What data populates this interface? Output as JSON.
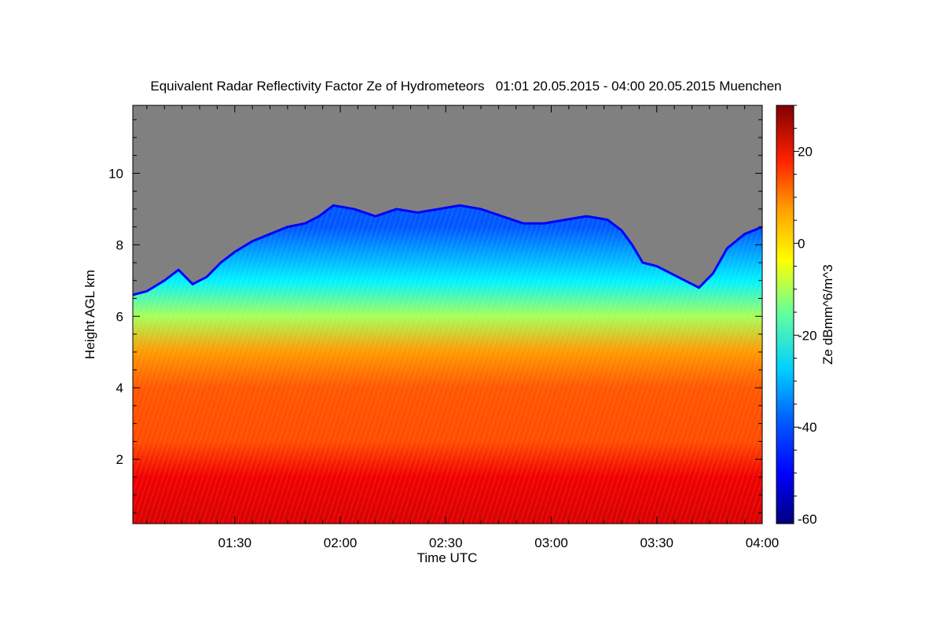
{
  "chart_data": {
    "type": "heatmap",
    "title": "Equivalent Radar Reflectivity Factor Ze of Hydrometeors   01:01 20.05.2015 - 04:00 20.05.2015 Muenchen",
    "xlabel": "Time UTC",
    "ylabel": "Height AGL km",
    "x_ticks": [
      "01:30",
      "02:00",
      "02:30",
      "03:00",
      "03:30",
      "04:00"
    ],
    "x_tick_minutes": [
      90,
      120,
      150,
      180,
      210,
      240
    ],
    "xlim_minutes": [
      61,
      240
    ],
    "y_ticks": [
      2,
      4,
      6,
      8,
      10
    ],
    "ylim_km": [
      0.2,
      11.9
    ],
    "colorbar": {
      "label": "Ze dBmm^6/m^3",
      "range": [
        -61,
        30
      ],
      "ticks": [
        -60,
        -40,
        -20,
        0,
        20
      ]
    },
    "colors": {
      "no_data": "#808080",
      "colormap": [
        "#00007f",
        "#0000ff",
        "#0080ff",
        "#00ffff",
        "#80ff80",
        "#ffff00",
        "#ff8000",
        "#ff0000",
        "#7f0000"
      ]
    },
    "cloud_top_km": [
      [
        61,
        6.6
      ],
      [
        65,
        6.7
      ],
      [
        70,
        7.0
      ],
      [
        74,
        7.3
      ],
      [
        78,
        6.9
      ],
      [
        82,
        7.1
      ],
      [
        86,
        7.5
      ],
      [
        90,
        7.8
      ],
      [
        95,
        8.1
      ],
      [
        100,
        8.3
      ],
      [
        105,
        8.5
      ],
      [
        110,
        8.6
      ],
      [
        114,
        8.8
      ],
      [
        118,
        9.1
      ],
      [
        124,
        9.0
      ],
      [
        130,
        8.8
      ],
      [
        136,
        9.0
      ],
      [
        142,
        8.9
      ],
      [
        148,
        9.0
      ],
      [
        154,
        9.1
      ],
      [
        160,
        9.0
      ],
      [
        166,
        8.8
      ],
      [
        172,
        8.6
      ],
      [
        178,
        8.6
      ],
      [
        184,
        8.7
      ],
      [
        190,
        8.8
      ],
      [
        196,
        8.7
      ],
      [
        200,
        8.4
      ],
      [
        203,
        8.0
      ],
      [
        206,
        7.5
      ],
      [
        210,
        7.4
      ],
      [
        214,
        7.2
      ],
      [
        218,
        7.0
      ],
      [
        222,
        6.8
      ],
      [
        226,
        7.2
      ],
      [
        230,
        7.9
      ],
      [
        235,
        8.3
      ],
      [
        240,
        8.5
      ]
    ],
    "reflectivity_profile": [
      {
        "height_km": 0.2,
        "ze_dbz": 22
      },
      {
        "height_km": 1.5,
        "ze_dbz": 20
      },
      {
        "height_km": 2.5,
        "ze_dbz": 12
      },
      {
        "height_km": 4.0,
        "ze_dbz": 11
      },
      {
        "height_km": 5.0,
        "ze_dbz": 5
      },
      {
        "height_km": 6.0,
        "ze_dbz": -12
      },
      {
        "height_km": 7.0,
        "ze_dbz": -28
      },
      {
        "height_km": 8.5,
        "ze_dbz": -42
      }
    ]
  }
}
